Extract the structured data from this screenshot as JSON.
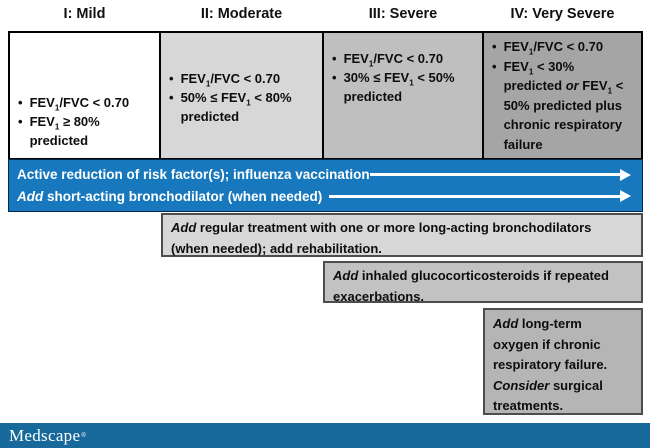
{
  "colors": {
    "banner_blue": "#1878bd",
    "footer_blue": "#17689b",
    "col2_gray": "#d7d7d7",
    "col3_gray": "#bfbfbf",
    "col4_gray": "#a5a5a5"
  },
  "columns": [
    {
      "header": "I: Mild",
      "b1_pre": "FEV",
      "b1_sub": "1",
      "b1_post": "/FVC < 0.70",
      "b2_pre": "FEV",
      "b2_sub": "1",
      "b2_post": " ≥ 80% predicted"
    },
    {
      "header": "II: Moderate",
      "b1_pre": "FEV",
      "b1_sub": "1",
      "b1_post": "/FVC < 0.70",
      "b2_pre": "50% ≤ FEV",
      "b2_sub": "1",
      "b2_post": " < 80% predicted"
    },
    {
      "header": "III: Severe",
      "b1_pre": "FEV",
      "b1_sub": "1",
      "b1_post": "/FVC < 0.70",
      "b2_pre": "30% ≤ FEV",
      "b2_sub": "1",
      "b2_post": " < 50% predicted"
    },
    {
      "header": "IV: Very Severe",
      "b1_pre": "FEV",
      "b1_sub": "1",
      "b1_post": "/FVC < 0.70",
      "b2_pre": "FEV",
      "b2_sub": "1",
      "b2_mid1": " < 30% predicted ",
      "b2_or": "or",
      "b2_mid2": " FEV",
      "b2_sub2": "1",
      "b2_post": " < 50% predicted plus chronic respiratory failure"
    }
  ],
  "banner": {
    "line1": "Active reduction of risk factor(s); influenza vaccination",
    "line2_lead": "Add",
    "line2_rest": " short-acting bronchodilator (when needed)"
  },
  "steps": {
    "long_acting": {
      "lead": "Add",
      "rest": " regular treatment with one or more long-acting bronchodilators (when needed); add rehabilitation."
    },
    "glucocorticosteroids": {
      "lead": "Add",
      "rest": " inhaled glucocorticosteroids if repeated exacerbations."
    },
    "oxygen": {
      "lead1": "Add",
      "text1": " long-term oxygen if chronic respiratory failure. ",
      "lead2": "Consider",
      "text2": " surgical treatments."
    }
  },
  "footer": {
    "brand": "Medscape",
    "trademark": "®"
  }
}
